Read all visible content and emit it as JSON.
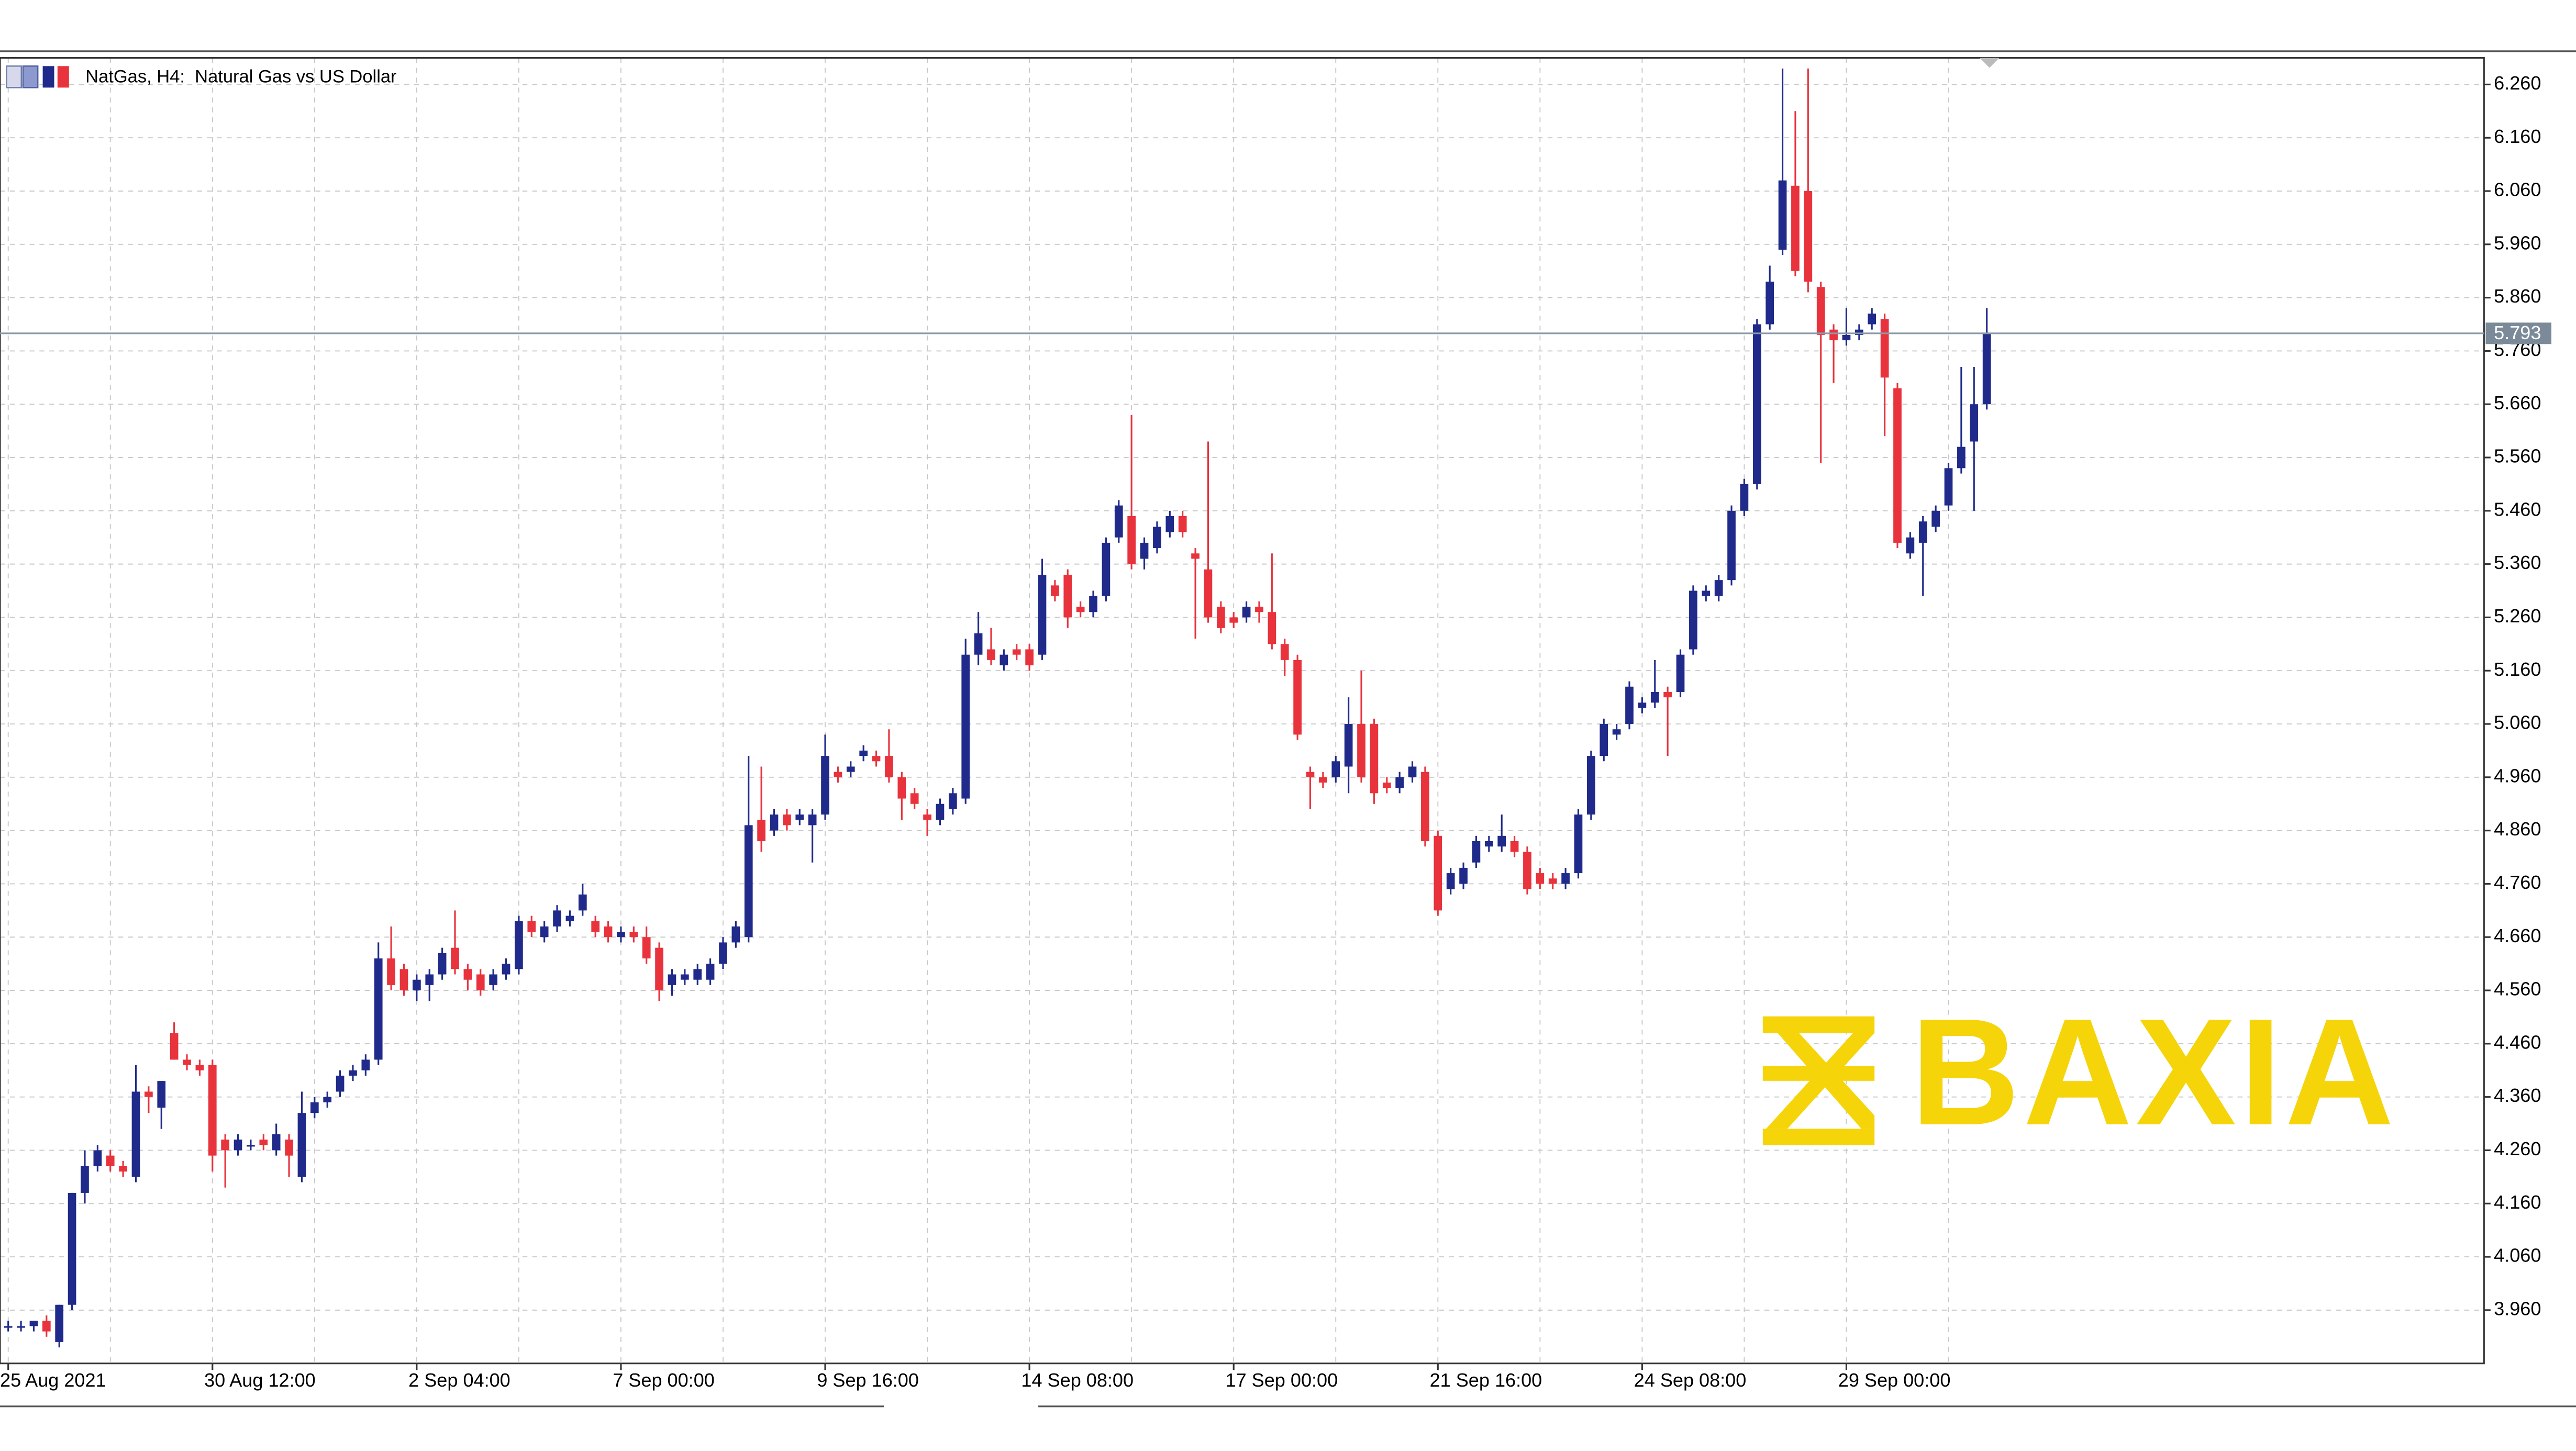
{
  "chart_data": {
    "type": "candlestick",
    "title": "NatGas, H4:  Natural Gas vs US Dollar",
    "up_color": "#1f2a8a",
    "down_color": "#e8323c",
    "ylim": [
      3.86,
      6.31
    ],
    "yticks": [
      {
        "value": 3.96,
        "label": "3.960"
      },
      {
        "value": 4.06,
        "label": "4.060"
      },
      {
        "value": 4.16,
        "label": "4.160"
      },
      {
        "value": 4.26,
        "label": "4.260"
      },
      {
        "value": 4.36,
        "label": "4.360"
      },
      {
        "value": 4.46,
        "label": "4.460"
      },
      {
        "value": 4.56,
        "label": "4.560"
      },
      {
        "value": 4.66,
        "label": "4.660"
      },
      {
        "value": 4.76,
        "label": "4.760"
      },
      {
        "value": 4.86,
        "label": "4.860"
      },
      {
        "value": 4.96,
        "label": "4.960"
      },
      {
        "value": 5.06,
        "label": "5.060"
      },
      {
        "value": 5.16,
        "label": "5.160"
      },
      {
        "value": 5.26,
        "label": "5.260"
      },
      {
        "value": 5.36,
        "label": "5.360"
      },
      {
        "value": 5.46,
        "label": "5.460"
      },
      {
        "value": 5.56,
        "label": "5.560"
      },
      {
        "value": 5.66,
        "label": "5.660"
      },
      {
        "value": 5.76,
        "label": "5.760"
      },
      {
        "value": 5.86,
        "label": "5.860"
      },
      {
        "value": 5.96,
        "label": "5.960"
      },
      {
        "value": 6.06,
        "label": "6.060"
      },
      {
        "value": 6.16,
        "label": "6.160"
      },
      {
        "value": 6.26,
        "label": "6.260"
      }
    ],
    "grid": true,
    "last_price": 5.793,
    "categories": [
      "25 Aug 2021",
      null,
      null,
      null,
      null,
      null,
      null,
      null,
      null,
      null,
      null,
      null,
      null,
      null,
      null,
      null,
      "30 Aug 12:00",
      null,
      null,
      null,
      null,
      null,
      null,
      null,
      null,
      null,
      null,
      null,
      null,
      null,
      null,
      null,
      "2 Sep 04:00",
      null,
      null,
      null,
      null,
      null,
      null,
      null,
      null,
      null,
      null,
      null,
      null,
      null,
      null,
      null,
      "7 Sep 00:00",
      null,
      null,
      null,
      null,
      null,
      null,
      null,
      null,
      null,
      null,
      null,
      null,
      null,
      null,
      null,
      "9 Sep 16:00",
      null,
      null,
      null,
      null,
      null,
      null,
      null,
      null,
      null,
      null,
      null,
      null,
      null,
      null,
      null,
      "14 Sep 08:00",
      null,
      null,
      null,
      null,
      null,
      null,
      null,
      null,
      null,
      null,
      null,
      null,
      null,
      null,
      null,
      "17 Sep 00:00",
      null,
      null,
      null,
      null,
      null,
      null,
      null,
      null,
      null,
      null,
      null,
      null,
      null,
      null,
      null,
      "21 Sep 16:00",
      null,
      null,
      null,
      null,
      null,
      null,
      null,
      null,
      null,
      null,
      null,
      null,
      null,
      null,
      null,
      "24 Sep 08:00",
      null,
      null,
      null,
      null,
      null,
      null,
      null,
      null,
      null,
      null,
      null,
      null,
      null,
      null,
      null,
      "29 Sep 00:00",
      null,
      null,
      null,
      null,
      null,
      null,
      null,
      null,
      null,
      null,
      null
    ],
    "ohlc": [
      [
        3.93,
        3.94,
        3.92,
        3.93
      ],
      [
        3.93,
        3.94,
        3.92,
        3.93
      ],
      [
        3.93,
        3.94,
        3.92,
        3.94
      ],
      [
        3.94,
        3.95,
        3.91,
        3.92
      ],
      [
        3.9,
        3.97,
        3.89,
        3.97
      ],
      [
        3.97,
        4.18,
        3.96,
        4.18
      ],
      [
        4.18,
        4.26,
        4.16,
        4.23
      ],
      [
        4.23,
        4.27,
        4.22,
        4.26
      ],
      [
        4.25,
        4.26,
        4.22,
        4.23
      ],
      [
        4.23,
        4.24,
        4.21,
        4.22
      ],
      [
        4.21,
        4.42,
        4.2,
        4.37
      ],
      [
        4.37,
        4.38,
        4.33,
        4.36
      ],
      [
        4.34,
        4.39,
        4.3,
        4.39
      ],
      [
        4.48,
        4.5,
        4.43,
        4.43
      ],
      [
        4.43,
        4.44,
        4.41,
        4.42
      ],
      [
        4.42,
        4.43,
        4.4,
        4.41
      ],
      [
        4.42,
        4.43,
        4.22,
        4.25
      ],
      [
        4.28,
        4.29,
        4.19,
        4.26
      ],
      [
        4.26,
        4.29,
        4.25,
        4.28
      ],
      [
        4.27,
        4.28,
        4.26,
        4.27
      ],
      [
        4.28,
        4.29,
        4.26,
        4.27
      ],
      [
        4.26,
        4.31,
        4.25,
        4.29
      ],
      [
        4.28,
        4.29,
        4.21,
        4.25
      ],
      [
        4.21,
        4.37,
        4.2,
        4.33
      ],
      [
        4.33,
        4.36,
        4.32,
        4.35
      ],
      [
        4.35,
        4.37,
        4.34,
        4.36
      ],
      [
        4.37,
        4.41,
        4.36,
        4.4
      ],
      [
        4.4,
        4.42,
        4.39,
        4.41
      ],
      [
        4.41,
        4.44,
        4.4,
        4.43
      ],
      [
        4.43,
        4.65,
        4.42,
        4.62
      ],
      [
        4.62,
        4.68,
        4.56,
        4.57
      ],
      [
        4.6,
        4.61,
        4.55,
        4.56
      ],
      [
        4.56,
        4.59,
        4.54,
        4.58
      ],
      [
        4.57,
        4.6,
        4.54,
        4.59
      ],
      [
        4.59,
        4.64,
        4.58,
        4.63
      ],
      [
        4.64,
        4.71,
        4.59,
        4.6
      ],
      [
        4.6,
        4.61,
        4.56,
        4.58
      ],
      [
        4.59,
        4.6,
        4.55,
        4.56
      ],
      [
        4.57,
        4.6,
        4.56,
        4.59
      ],
      [
        4.59,
        4.62,
        4.58,
        4.61
      ],
      [
        4.6,
        4.7,
        4.59,
        4.69
      ],
      [
        4.69,
        4.7,
        4.66,
        4.67
      ],
      [
        4.66,
        4.69,
        4.65,
        4.68
      ],
      [
        4.68,
        4.72,
        4.67,
        4.71
      ],
      [
        4.69,
        4.71,
        4.68,
        4.7
      ],
      [
        4.71,
        4.76,
        4.7,
        4.74
      ],
      [
        4.69,
        4.7,
        4.66,
        4.67
      ],
      [
        4.68,
        4.69,
        4.65,
        4.66
      ],
      [
        4.66,
        4.68,
        4.65,
        4.67
      ],
      [
        4.67,
        4.68,
        4.65,
        4.66
      ],
      [
        4.66,
        4.68,
        4.61,
        4.62
      ],
      [
        4.64,
        4.65,
        4.54,
        4.56
      ],
      [
        4.57,
        4.6,
        4.55,
        4.59
      ],
      [
        4.58,
        4.6,
        4.57,
        4.59
      ],
      [
        4.58,
        4.61,
        4.57,
        4.6
      ],
      [
        4.58,
        4.62,
        4.57,
        4.61
      ],
      [
        4.61,
        4.66,
        4.6,
        4.65
      ],
      [
        4.65,
        4.69,
        4.64,
        4.68
      ],
      [
        4.66,
        5.0,
        4.65,
        4.87
      ],
      [
        4.88,
        4.98,
        4.82,
        4.84
      ],
      [
        4.86,
        4.9,
        4.85,
        4.89
      ],
      [
        4.89,
        4.9,
        4.86,
        4.87
      ],
      [
        4.88,
        4.9,
        4.87,
        4.89
      ],
      [
        4.87,
        4.9,
        4.8,
        4.89
      ],
      [
        4.89,
        5.04,
        4.88,
        5.0
      ],
      [
        4.97,
        4.98,
        4.95,
        4.96
      ],
      [
        4.97,
        4.99,
        4.96,
        4.98
      ],
      [
        5.0,
        5.02,
        4.99,
        5.01
      ],
      [
        5.0,
        5.01,
        4.98,
        4.99
      ],
      [
        5.0,
        5.05,
        4.95,
        4.96
      ],
      [
        4.96,
        4.97,
        4.88,
        4.92
      ],
      [
        4.93,
        4.94,
        4.9,
        4.91
      ],
      [
        4.89,
        4.9,
        4.85,
        4.88
      ],
      [
        4.88,
        4.92,
        4.87,
        4.91
      ],
      [
        4.9,
        4.94,
        4.89,
        4.93
      ],
      [
        4.92,
        5.22,
        4.91,
        5.19
      ],
      [
        5.19,
        5.27,
        5.17,
        5.23
      ],
      [
        5.2,
        5.24,
        5.17,
        5.18
      ],
      [
        5.17,
        5.2,
        5.16,
        5.19
      ],
      [
        5.2,
        5.21,
        5.18,
        5.19
      ],
      [
        5.2,
        5.21,
        5.16,
        5.17
      ],
      [
        5.19,
        5.37,
        5.18,
        5.34
      ],
      [
        5.32,
        5.33,
        5.29,
        5.3
      ],
      [
        5.34,
        5.35,
        5.24,
        5.26
      ],
      [
        5.28,
        5.29,
        5.26,
        5.27
      ],
      [
        5.27,
        5.31,
        5.26,
        5.3
      ],
      [
        5.3,
        5.41,
        5.29,
        5.4
      ],
      [
        5.41,
        5.48,
        5.4,
        5.47
      ],
      [
        5.45,
        5.64,
        5.35,
        5.36
      ],
      [
        5.37,
        5.41,
        5.35,
        5.4
      ],
      [
        5.39,
        5.44,
        5.38,
        5.43
      ],
      [
        5.42,
        5.46,
        5.41,
        5.45
      ],
      [
        5.45,
        5.46,
        5.41,
        5.42
      ],
      [
        5.38,
        5.39,
        5.22,
        5.37
      ],
      [
        5.35,
        5.59,
        5.25,
        5.26
      ],
      [
        5.28,
        5.29,
        5.23,
        5.24
      ],
      [
        5.26,
        5.27,
        5.24,
        5.25
      ],
      [
        5.26,
        5.29,
        5.25,
        5.28
      ],
      [
        5.28,
        5.29,
        5.25,
        5.27
      ],
      [
        5.27,
        5.38,
        5.2,
        5.21
      ],
      [
        5.21,
        5.22,
        5.15,
        5.18
      ],
      [
        5.18,
        5.19,
        5.03,
        5.04
      ],
      [
        4.97,
        4.98,
        4.9,
        4.96
      ],
      [
        4.96,
        4.97,
        4.94,
        4.95
      ],
      [
        4.96,
        5.0,
        4.95,
        4.99
      ],
      [
        4.98,
        5.11,
        4.93,
        5.06
      ],
      [
        5.06,
        5.16,
        4.95,
        4.96
      ],
      [
        5.06,
        5.07,
        4.91,
        4.93
      ],
      [
        4.95,
        4.96,
        4.93,
        4.94
      ],
      [
        4.94,
        4.97,
        4.93,
        4.96
      ],
      [
        4.96,
        4.99,
        4.95,
        4.98
      ],
      [
        4.97,
        4.98,
        4.83,
        4.84
      ],
      [
        4.85,
        4.86,
        4.7,
        4.71
      ],
      [
        4.75,
        4.79,
        4.74,
        4.78
      ],
      [
        4.76,
        4.8,
        4.75,
        4.79
      ],
      [
        4.8,
        4.85,
        4.79,
        4.84
      ],
      [
        4.83,
        4.85,
        4.82,
        4.84
      ],
      [
        4.83,
        4.89,
        4.82,
        4.85
      ],
      [
        4.84,
        4.85,
        4.81,
        4.82
      ],
      [
        4.82,
        4.83,
        4.74,
        4.75
      ],
      [
        4.78,
        4.79,
        4.75,
        4.76
      ],
      [
        4.77,
        4.78,
        4.75,
        4.76
      ],
      [
        4.76,
        4.79,
        4.75,
        4.78
      ],
      [
        4.78,
        4.9,
        4.77,
        4.89
      ],
      [
        4.89,
        5.01,
        4.88,
        5.0
      ],
      [
        5.0,
        5.07,
        4.99,
        5.06
      ],
      [
        5.04,
        5.06,
        5.03,
        5.05
      ],
      [
        5.06,
        5.14,
        5.05,
        5.13
      ],
      [
        5.09,
        5.11,
        5.08,
        5.1
      ],
      [
        5.1,
        5.18,
        5.09,
        5.12
      ],
      [
        5.12,
        5.13,
        5.0,
        5.11
      ],
      [
        5.12,
        5.2,
        5.11,
        5.19
      ],
      [
        5.2,
        5.32,
        5.19,
        5.31
      ],
      [
        5.3,
        5.32,
        5.29,
        5.31
      ],
      [
        5.3,
        5.34,
        5.29,
        5.33
      ],
      [
        5.33,
        5.47,
        5.32,
        5.46
      ],
      [
        5.46,
        5.52,
        5.45,
        5.51
      ],
      [
        5.51,
        5.82,
        5.5,
        5.81
      ],
      [
        5.81,
        5.92,
        5.8,
        5.89
      ],
      [
        5.95,
        6.29,
        5.94,
        6.08
      ],
      [
        6.07,
        6.21,
        5.9,
        5.91
      ],
      [
        6.06,
        6.29,
        5.87,
        5.89
      ],
      [
        5.88,
        5.89,
        5.55,
        5.79
      ],
      [
        5.8,
        5.81,
        5.7,
        5.78
      ],
      [
        5.78,
        5.84,
        5.77,
        5.79
      ],
      [
        5.79,
        5.81,
        5.78,
        5.8
      ],
      [
        5.81,
        5.84,
        5.8,
        5.83
      ],
      [
        5.82,
        5.83,
        5.6,
        5.71
      ],
      [
        5.69,
        5.7,
        5.39,
        5.4
      ],
      [
        5.38,
        5.42,
        5.37,
        5.41
      ],
      [
        5.4,
        5.45,
        5.3,
        5.44
      ],
      [
        5.43,
        5.47,
        5.42,
        5.46
      ],
      [
        5.47,
        5.55,
        5.46,
        5.54
      ],
      [
        5.54,
        5.73,
        5.53,
        5.58
      ],
      [
        5.59,
        5.73,
        5.46,
        5.66
      ],
      [
        5.66,
        5.84,
        5.65,
        5.793
      ]
    ]
  },
  "watermark": "BAXIA"
}
